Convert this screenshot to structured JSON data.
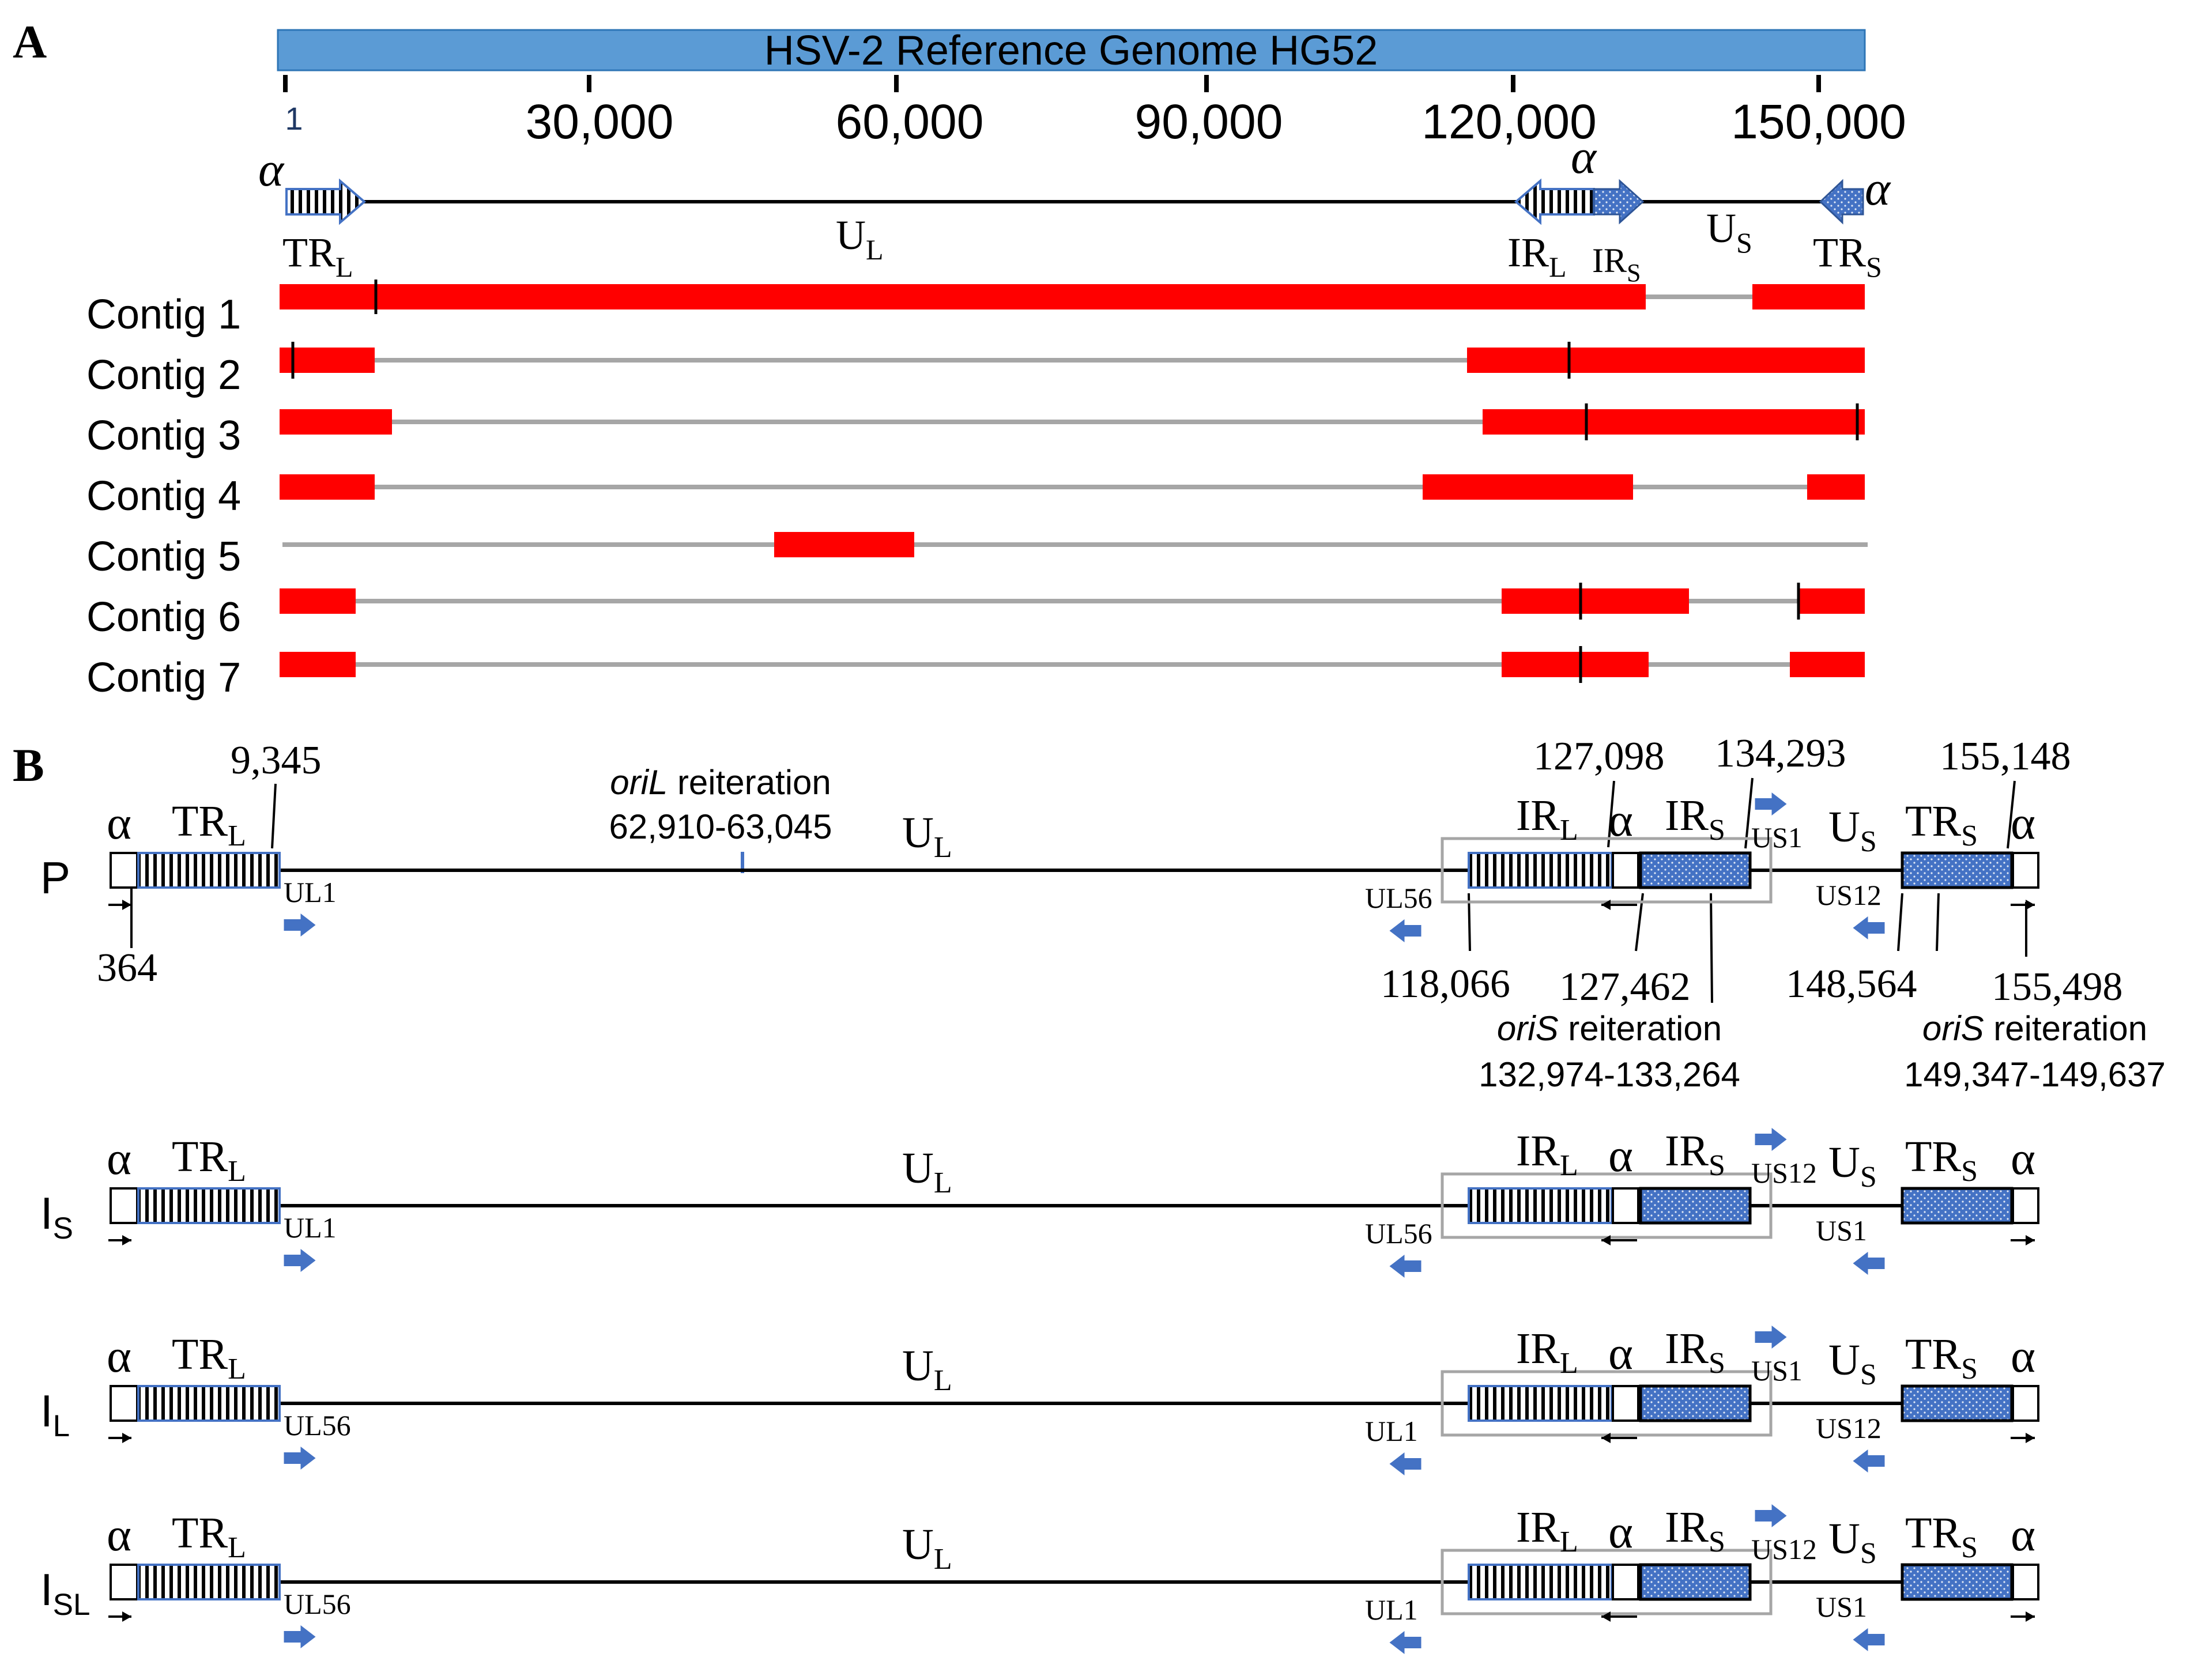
{
  "panel_a": {
    "letter": "A",
    "genome_title": "HSV-2 Reference Genome HG52",
    "ticks": [
      "1",
      "30,000",
      "60,000",
      "90,000",
      "120,000",
      "150,000"
    ],
    "region_labels": {
      "alpha": "α",
      "trl_main": "TR",
      "trl_sub": "L",
      "ul_main": "U",
      "ul_sub": "L",
      "irl_main": "IR",
      "irl_sub": "L",
      "irs_main": "IR",
      "irs_sub": "S",
      "us_main": "U",
      "us_sub": "S",
      "trs_main": "TR",
      "trs_sub": "S"
    },
    "contigs": [
      {
        "label": "Contig 1"
      },
      {
        "label": "Contig 2"
      },
      {
        "label": "Contig 3"
      },
      {
        "label": "Contig 4"
      },
      {
        "label": "Contig 5"
      },
      {
        "label": "Contig 6"
      },
      {
        "label": "Contig 7"
      }
    ],
    "colors": {
      "genome_bar": "#5b9bd5",
      "contig": "#ff0000",
      "gap": "#a6a6a6",
      "marker": "#000000"
    }
  },
  "panel_b": {
    "letter": "B",
    "isomers": [
      {
        "id": "P",
        "main": "P",
        "sub": "",
        "ul_gene": "UL1",
        "left_gene": "UL56",
        "top_us_gene": "US1",
        "bottom_us_gene": "US12"
      },
      {
        "id": "IS",
        "main": "I",
        "sub": "S",
        "ul_gene": "UL1",
        "left_gene": "UL56",
        "top_us_gene": "US12",
        "bottom_us_gene": "US1"
      },
      {
        "id": "IL",
        "main": "I",
        "sub": "L",
        "ul_gene": "UL56",
        "left_gene": "UL1",
        "top_us_gene": "US1",
        "bottom_us_gene": "US12"
      },
      {
        "id": "ISL",
        "main": "I",
        "sub": "SL",
        "ul_gene": "UL56",
        "left_gene": "UL1",
        "top_us_gene": "US12",
        "bottom_us_gene": "US1"
      }
    ],
    "coordinates": {
      "c9345": "9,345",
      "c364": "364",
      "c127098": "127,098",
      "c134293": "134,293",
      "c155148": "155,148",
      "c118066": "118,066",
      "c127462": "127,462",
      "c148564": "148,564",
      "c155498": "155,498"
    },
    "oril": {
      "italic": "oriL",
      "rest": " reiteration",
      "range": "62,910-63,045"
    },
    "oris1": {
      "italic": "oriS",
      "rest": " reiteration",
      "range": "132,974-133,264"
    },
    "oris2": {
      "italic": "oriS",
      "rest": " reiteration",
      "range": "149,347-149,637"
    },
    "colors": {
      "repeat_fill": "#4472c4",
      "gene_arrow": "#4472c4",
      "box_outline": "#a6a6a6"
    }
  }
}
